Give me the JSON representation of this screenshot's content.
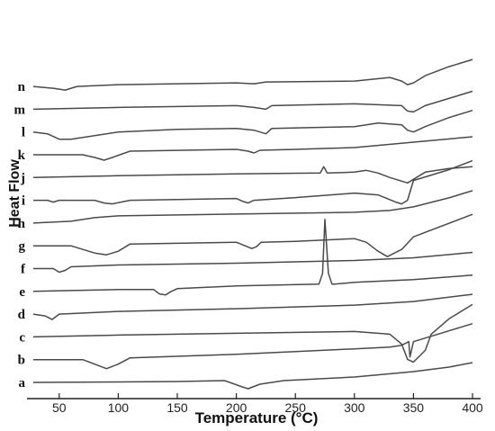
{
  "chart_data": {
    "type": "line",
    "title": "",
    "xlabel": "Temperature (°C)",
    "ylabel": "Heat Flow",
    "xlim": [
      25,
      400
    ],
    "xticks": [
      50,
      100,
      150,
      200,
      250,
      300,
      350,
      400
    ],
    "grid": false,
    "legend": "none",
    "series": [
      {
        "name": "a",
        "x": [
          28,
          100,
          150,
          190,
          205,
          210,
          220,
          240,
          300,
          350,
          380,
          400
        ],
        "y": [
          0,
          0.5,
          1,
          2,
          -5,
          -7,
          -2,
          2,
          6,
          12,
          17,
          22
        ]
      },
      {
        "name": "b",
        "x": [
          28,
          70,
          80,
          90,
          100,
          110,
          200,
          300,
          330,
          340,
          346,
          347,
          350,
          380,
          400
        ],
        "y": [
          0,
          0,
          -5,
          -10,
          -5,
          2,
          6,
          12,
          14,
          16,
          20,
          3,
          20,
          32,
          40
        ]
      },
      {
        "name": "c",
        "x": [
          28,
          100,
          200,
          300,
          330,
          340,
          345,
          350,
          360,
          365,
          380,
          400
        ],
        "y": [
          0,
          2,
          4,
          6,
          3,
          -8,
          -25,
          -28,
          -15,
          3,
          20,
          36
        ]
      },
      {
        "name": "d",
        "x": [
          28,
          38,
          44,
          50,
          100,
          200,
          300,
          350,
          400
        ],
        "y": [
          0,
          -2,
          -6,
          0,
          3,
          6,
          10,
          14,
          22
        ]
      },
      {
        "name": "e",
        "x": [
          28,
          100,
          130,
          135,
          140,
          145,
          150,
          200,
          270,
          273,
          275,
          278,
          281,
          283,
          300,
          350,
          400
        ],
        "y": [
          0,
          2,
          2,
          -3,
          -4,
          0,
          3,
          6,
          8,
          20,
          80,
          20,
          8,
          8,
          10,
          13,
          18
        ]
      },
      {
        "name": "f",
        "x": [
          28,
          45,
          50,
          55,
          60,
          100,
          200,
          300,
          350,
          400
        ],
        "y": [
          0,
          0,
          -4,
          -2,
          2,
          4,
          6,
          9,
          12,
          18
        ]
      },
      {
        "name": "g",
        "x": [
          28,
          60,
          70,
          80,
          90,
          100,
          110,
          200,
          213,
          217,
          221,
          250,
          300,
          310,
          320,
          328,
          340,
          350,
          400
        ],
        "y": [
          0,
          0,
          -4,
          -8,
          -10,
          -6,
          2,
          4,
          -3,
          -1,
          4,
          5,
          8,
          4,
          -6,
          -12,
          -4,
          10,
          35
        ]
      },
      {
        "name": "h",
        "x": [
          28,
          60,
          80,
          100,
          200,
          300,
          330,
          350,
          380,
          400
        ],
        "y": [
          0,
          2,
          6,
          8,
          10,
          12,
          14,
          18,
          28,
          36
        ]
      },
      {
        "name": "i",
        "x": [
          28,
          40,
          45,
          50,
          80,
          88,
          95,
          110,
          200,
          205,
          210,
          215,
          250,
          300,
          320,
          335,
          340,
          345,
          350,
          380,
          400
        ],
        "y": [
          0,
          0,
          -2,
          0,
          0,
          -3,
          -4,
          0,
          2,
          -1,
          -3,
          0,
          3,
          8,
          6,
          -2,
          -4,
          0,
          22,
          34,
          44
        ]
      },
      {
        "name": "j",
        "x": [
          28,
          100,
          200,
          271,
          274,
          277,
          300,
          310,
          320,
          330,
          340,
          345,
          350,
          360,
          380,
          400
        ],
        "y": [
          0,
          2,
          4,
          5,
          12,
          5,
          6,
          8,
          5,
          0,
          -4,
          -6,
          -2,
          6,
          10,
          12
        ]
      },
      {
        "name": "k",
        "x": [
          28,
          70,
          80,
          88,
          95,
          110,
          200,
          210,
          215,
          220,
          250,
          300,
          350,
          400
        ],
        "y": [
          0,
          0,
          -3,
          -6,
          -3,
          4,
          6,
          4,
          2,
          5,
          6,
          8,
          14,
          20
        ]
      },
      {
        "name": "l",
        "x": [
          28,
          40,
          50,
          60,
          100,
          150,
          200,
          215,
          225,
          230,
          300,
          310,
          320,
          340,
          345,
          350,
          360,
          380,
          400
        ],
        "y": [
          0,
          -2,
          -8,
          -8,
          0,
          3,
          4,
          2,
          -2,
          4,
          6,
          8,
          10,
          8,
          2,
          0,
          6,
          16,
          24
        ]
      },
      {
        "name": "m",
        "x": [
          28,
          100,
          200,
          215,
          225,
          230,
          300,
          340,
          345,
          350,
          360,
          380,
          400
        ],
        "y": [
          0,
          2,
          4,
          2,
          0,
          4,
          6,
          4,
          -2,
          -3,
          4,
          12,
          20
        ]
      },
      {
        "name": "n",
        "x": [
          28,
          45,
          55,
          65,
          100,
          200,
          215,
          225,
          300,
          330,
          340,
          345,
          350,
          360,
          380,
          400
        ],
        "y": [
          0,
          -2,
          -4,
          0,
          2,
          4,
          3,
          5,
          6,
          10,
          6,
          2,
          4,
          12,
          22,
          30
        ]
      }
    ]
  }
}
